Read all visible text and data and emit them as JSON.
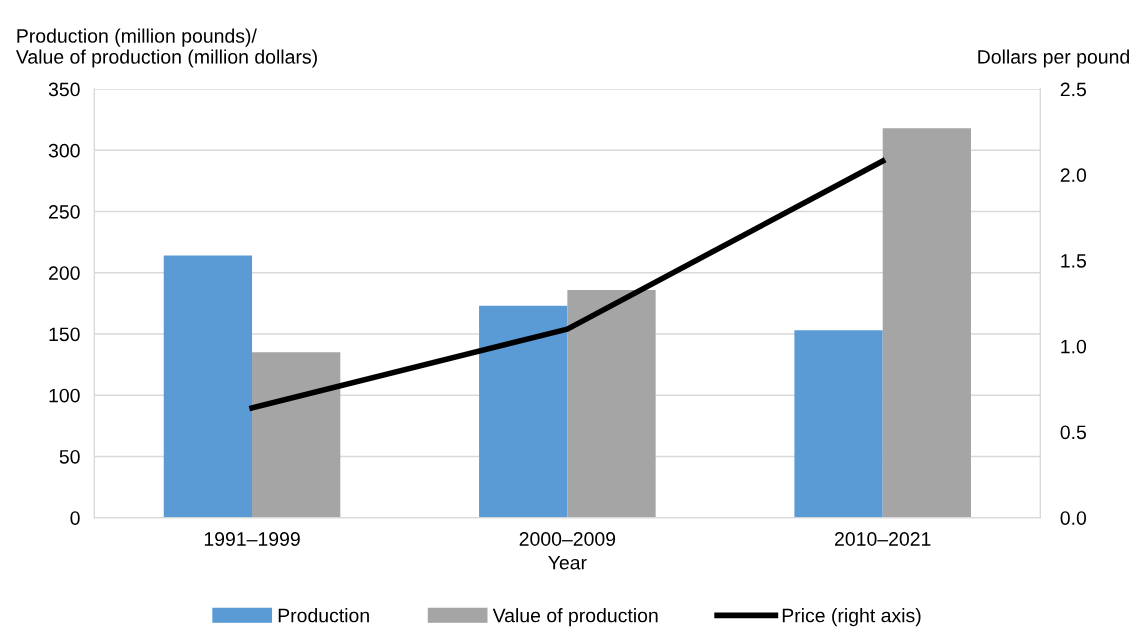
{
  "chart_data": {
    "type": "bar",
    "xlabel": "Year",
    "ylabel": "Production (million pounds)/\nValue of production (million dollars)",
    "y2label": "Dollars per pound",
    "categories": [
      "1991–1999",
      "2000–2009",
      "2010–2021"
    ],
    "series": [
      {
        "name": "Production",
        "color": "#5b9bd5",
        "values": [
          214,
          173,
          153
        ]
      },
      {
        "name": "Value of production",
        "color": "#a5a5a5",
        "values": [
          135,
          186,
          318
        ]
      },
      {
        "name": "Price (right axis)",
        "type": "line",
        "axis": "y2",
        "color": "#000000",
        "values": [
          0.64,
          1.1,
          2.08
        ]
      }
    ],
    "ylim": [
      0,
      350
    ],
    "yticks": [
      0,
      50,
      100,
      150,
      200,
      250,
      300,
      350
    ],
    "y2lim": [
      0,
      2.5
    ],
    "y2ticks": [
      {
        "value": 0,
        "label": "0.0"
      },
      {
        "value": 0.5,
        "label": "0.5"
      },
      {
        "value": 1,
        "label": "1.0"
      },
      {
        "value": 1.5,
        "label": "1.5"
      },
      {
        "value": 2,
        "label": "2.0"
      },
      {
        "value": 2.5,
        "label": "2.5"
      }
    ],
    "grid": "y",
    "legend": "bottom",
    "marker": "none",
    "line_style": "solid"
  }
}
